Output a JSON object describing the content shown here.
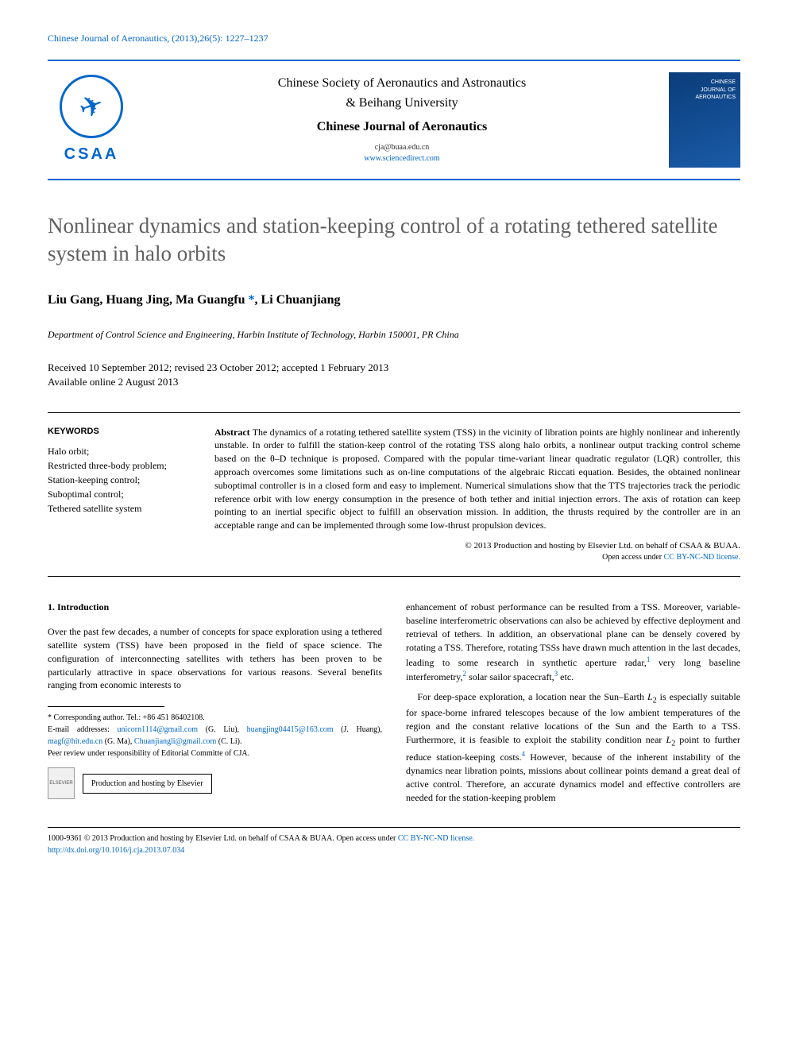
{
  "colors": {
    "link": "#0066cc",
    "title_gray": "#606060",
    "text": "#000000",
    "background": "#ffffff",
    "cover_bg_start": "#0a3d7a",
    "cover_bg_end": "#1a5ba8"
  },
  "journal_ref": "Chinese Journal of Aeronautics, (2013),26(5): 1227–1237",
  "header": {
    "logo_acronym": "CSAA",
    "society_line1": "Chinese Society of Aeronautics and Astronautics",
    "society_line2": "& Beihang University",
    "journal_name": "Chinese Journal of Aeronautics",
    "email": "cja@buaa.edu.cn",
    "url": "www.sciencedirect.com",
    "cover_label1": "CHINESE",
    "cover_label2": "JOURNAL OF",
    "cover_label3": "AERONAUTICS"
  },
  "article": {
    "title": "Nonlinear dynamics and station-keeping control of a rotating tethered satellite system in halo orbits",
    "authors_pre": "Liu Gang, Huang Jing, Ma Guangfu ",
    "corresp_mark": "*",
    "authors_post": ", Li Chuanjiang",
    "affiliation": "Department of Control Science and Engineering, Harbin Institute of Technology, Harbin 150001, PR China",
    "dates_line1": "Received 10 September 2012; revised 23 October 2012; accepted 1 February 2013",
    "dates_line2": "Available online 2 August 2013"
  },
  "keywords": {
    "heading": "KEYWORDS",
    "items": "Halo orbit;\nRestricted three-body problem;\nStation-keeping control;\nSuboptimal control;\nTethered satellite system"
  },
  "abstract": {
    "label": "Abstract",
    "text": "   The dynamics of a rotating tethered satellite system (TSS) in the vicinity of libration points are highly nonlinear and inherently unstable. In order to fulfill the station-keep control of the rotating TSS along halo orbits, a nonlinear output tracking control scheme based on the θ–D technique is proposed. Compared with the popular time-variant linear quadratic regulator (LQR) controller, this approach overcomes some limitations such as on-line computations of the algebraic Riccati equation. Besides, the obtained nonlinear suboptimal controller is in a closed form and easy to implement. Numerical simulations show that the TTS trajectories track the periodic reference orbit with low energy consumption in the presence of both tether and initial injection errors. The axis of rotation can keep pointing to an inertial specific object to fulfill an observation mission. In addition, the thrusts required by the controller are in an acceptable range and can be implemented through some low-thrust propulsion devices.",
    "copyright": "© 2013 Production and hosting by Elsevier Ltd. on behalf of CSAA & BUAA.",
    "license_pre": "Open access under ",
    "license_link": "CC BY-NC-ND license."
  },
  "body": {
    "section_heading": "1. Introduction",
    "col1_p1": "Over the past few decades, a number of concepts for space exploration using a tethered satellite system (TSS) have been proposed in the field of space science. The configuration of interconnecting satellites with tethers has been proven to be particularly attractive in space observations for various reasons. Several benefits ranging from economic interests to",
    "col2_p1_a": "enhancement of robust performance can be resulted from a TSS. Moreover, variable-baseline interferometric observations can also be achieved by effective deployment and retrieval of tethers. In addition, an observational plane can be densely covered by rotating a TSS. Therefore, rotating TSSs have drawn much attention in the last decades, leading to some research in synthetic aperture radar,",
    "col2_p1_b": " very long baseline interferometry,",
    "col2_p1_c": " solar sailor spacecraft,",
    "col2_p1_d": " etc.",
    "col2_p2_a": "For deep-space exploration, a location near the Sun–Earth ",
    "col2_p2_L2a": "L",
    "col2_p2_b": " is especially suitable for space-borne infrared telescopes because of the low ambient temperatures of the region and the constant relative locations of the Sun and the Earth to a TSS. Furthermore, it is feasible to exploit the stability condition near ",
    "col2_p2_c": " point to further reduce station-keeping costs.",
    "col2_p2_d": " However, because of the inherent instability of the dynamics near libration points, missions about collinear points demand a great deal of active control. Therefore, an accurate dynamics model and effective controllers are needed for the station-keeping problem",
    "refs": {
      "r1": "1",
      "r2": "2",
      "r3": "3",
      "r4": "4"
    },
    "sub2": "2"
  },
  "footnotes": {
    "corresp": "* Corresponding author. Tel.: +86 451 86402108.",
    "emails_label": "E-mail addresses: ",
    "e1": "unicorn1114@gmail.com",
    "e1_who": " (G. Liu), ",
    "e2": "huangjing04415@163.com",
    "e2_who": " (J. Huang), ",
    "e3": "magf@hit.edu.cn",
    "e3_who": " (G. Ma), ",
    "e4": "Chuanjiangli@gmail.com",
    "e4_who": " (C. Li).",
    "peer": "Peer review under responsibility of Editorial Committe of CJA.",
    "elsevier_logo": "ELSEVIER",
    "hosting": "Production and hosting by Elsevier"
  },
  "bottom": {
    "issn_line_a": "1000-9361 © 2013 Production and hosting by Elsevier Ltd. on behalf of CSAA & BUAA.  ",
    "issn_line_b": "Open access under ",
    "issn_license": "CC BY-NC-ND license.",
    "doi": "http://dx.doi.org/10.1016/j.cja.2013.07.034"
  }
}
